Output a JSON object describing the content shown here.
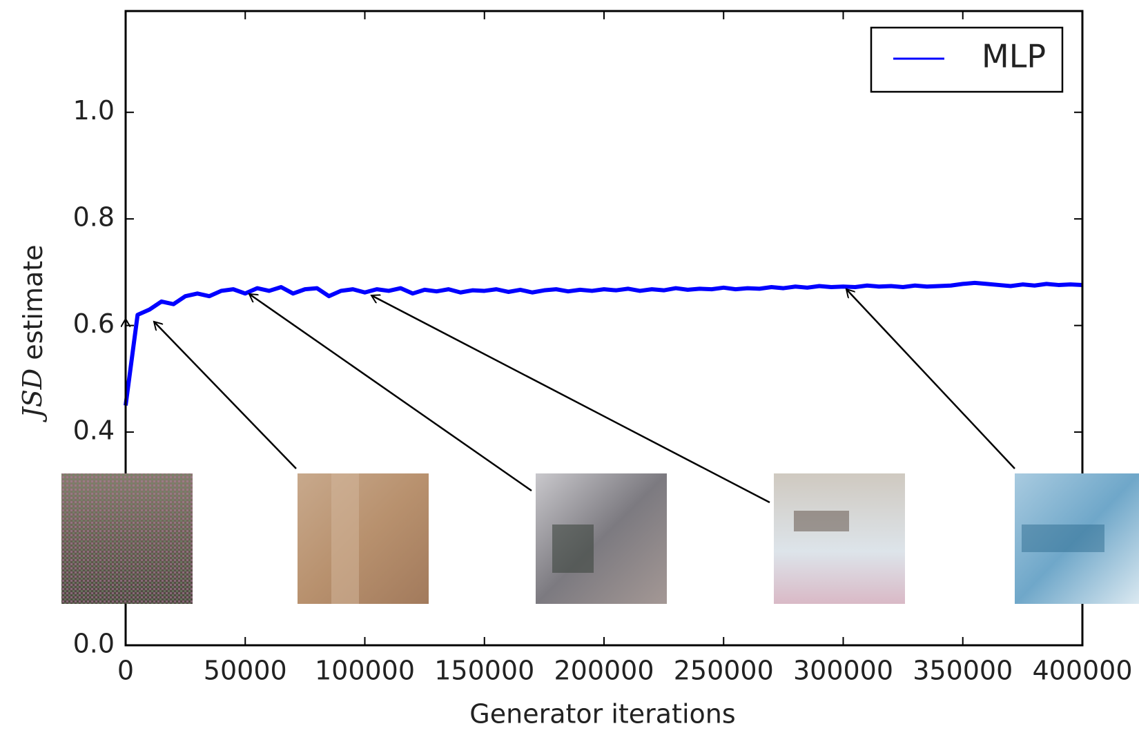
{
  "chart_data": {
    "type": "line",
    "xlabel": "Generator iterations",
    "ylabel_symbol": "JSD",
    "ylabel": "estimate",
    "x": [
      0,
      5000,
      10000,
      15000,
      20000,
      25000,
      30000,
      35000,
      40000,
      45000,
      50000,
      55000,
      60000,
      65000,
      70000,
      75000,
      80000,
      85000,
      90000,
      95000,
      100000,
      105000,
      110000,
      115000,
      120000,
      125000,
      130000,
      135000,
      140000,
      145000,
      150000,
      155000,
      160000,
      165000,
      170000,
      175000,
      180000,
      185000,
      190000,
      195000,
      200000,
      205000,
      210000,
      215000,
      220000,
      225000,
      230000,
      235000,
      240000,
      245000,
      250000,
      255000,
      260000,
      265000,
      270000,
      275000,
      280000,
      285000,
      290000,
      295000,
      300000,
      305000,
      310000,
      315000,
      320000,
      325000,
      330000,
      335000,
      340000,
      345000,
      350000,
      355000,
      360000,
      365000,
      370000,
      375000,
      380000,
      385000,
      390000,
      395000,
      400000
    ],
    "series": [
      {
        "name": "MLP",
        "color": "#0000ff",
        "values": [
          0.45,
          0.62,
          0.63,
          0.645,
          0.64,
          0.655,
          0.66,
          0.655,
          0.665,
          0.668,
          0.66,
          0.67,
          0.665,
          0.672,
          0.66,
          0.668,
          0.67,
          0.655,
          0.665,
          0.668,
          0.662,
          0.668,
          0.665,
          0.67,
          0.66,
          0.667,
          0.664,
          0.668,
          0.662,
          0.666,
          0.665,
          0.668,
          0.663,
          0.667,
          0.662,
          0.666,
          0.668,
          0.664,
          0.667,
          0.665,
          0.668,
          0.666,
          0.669,
          0.665,
          0.668,
          0.666,
          0.67,
          0.667,
          0.669,
          0.668,
          0.671,
          0.668,
          0.67,
          0.669,
          0.672,
          0.67,
          0.673,
          0.671,
          0.674,
          0.672,
          0.673,
          0.672,
          0.675,
          0.673,
          0.674,
          0.672,
          0.675,
          0.673,
          0.674,
          0.675,
          0.678,
          0.68,
          0.678,
          0.676,
          0.674,
          0.677,
          0.675,
          0.678,
          0.676,
          0.677,
          0.676
        ]
      }
    ],
    "xlim": [
      0,
      400000
    ],
    "xticks": [
      0,
      50000,
      100000,
      150000,
      200000,
      250000,
      300000,
      350000,
      400000
    ],
    "ylim": [
      0,
      1.19
    ],
    "yticks": [
      {
        "value": 0,
        "label": "0.0"
      },
      0.4,
      0.6,
      0.8,
      {
        "value": 1,
        "label": "1.0"
      }
    ],
    "legend": "upper right"
  }
}
